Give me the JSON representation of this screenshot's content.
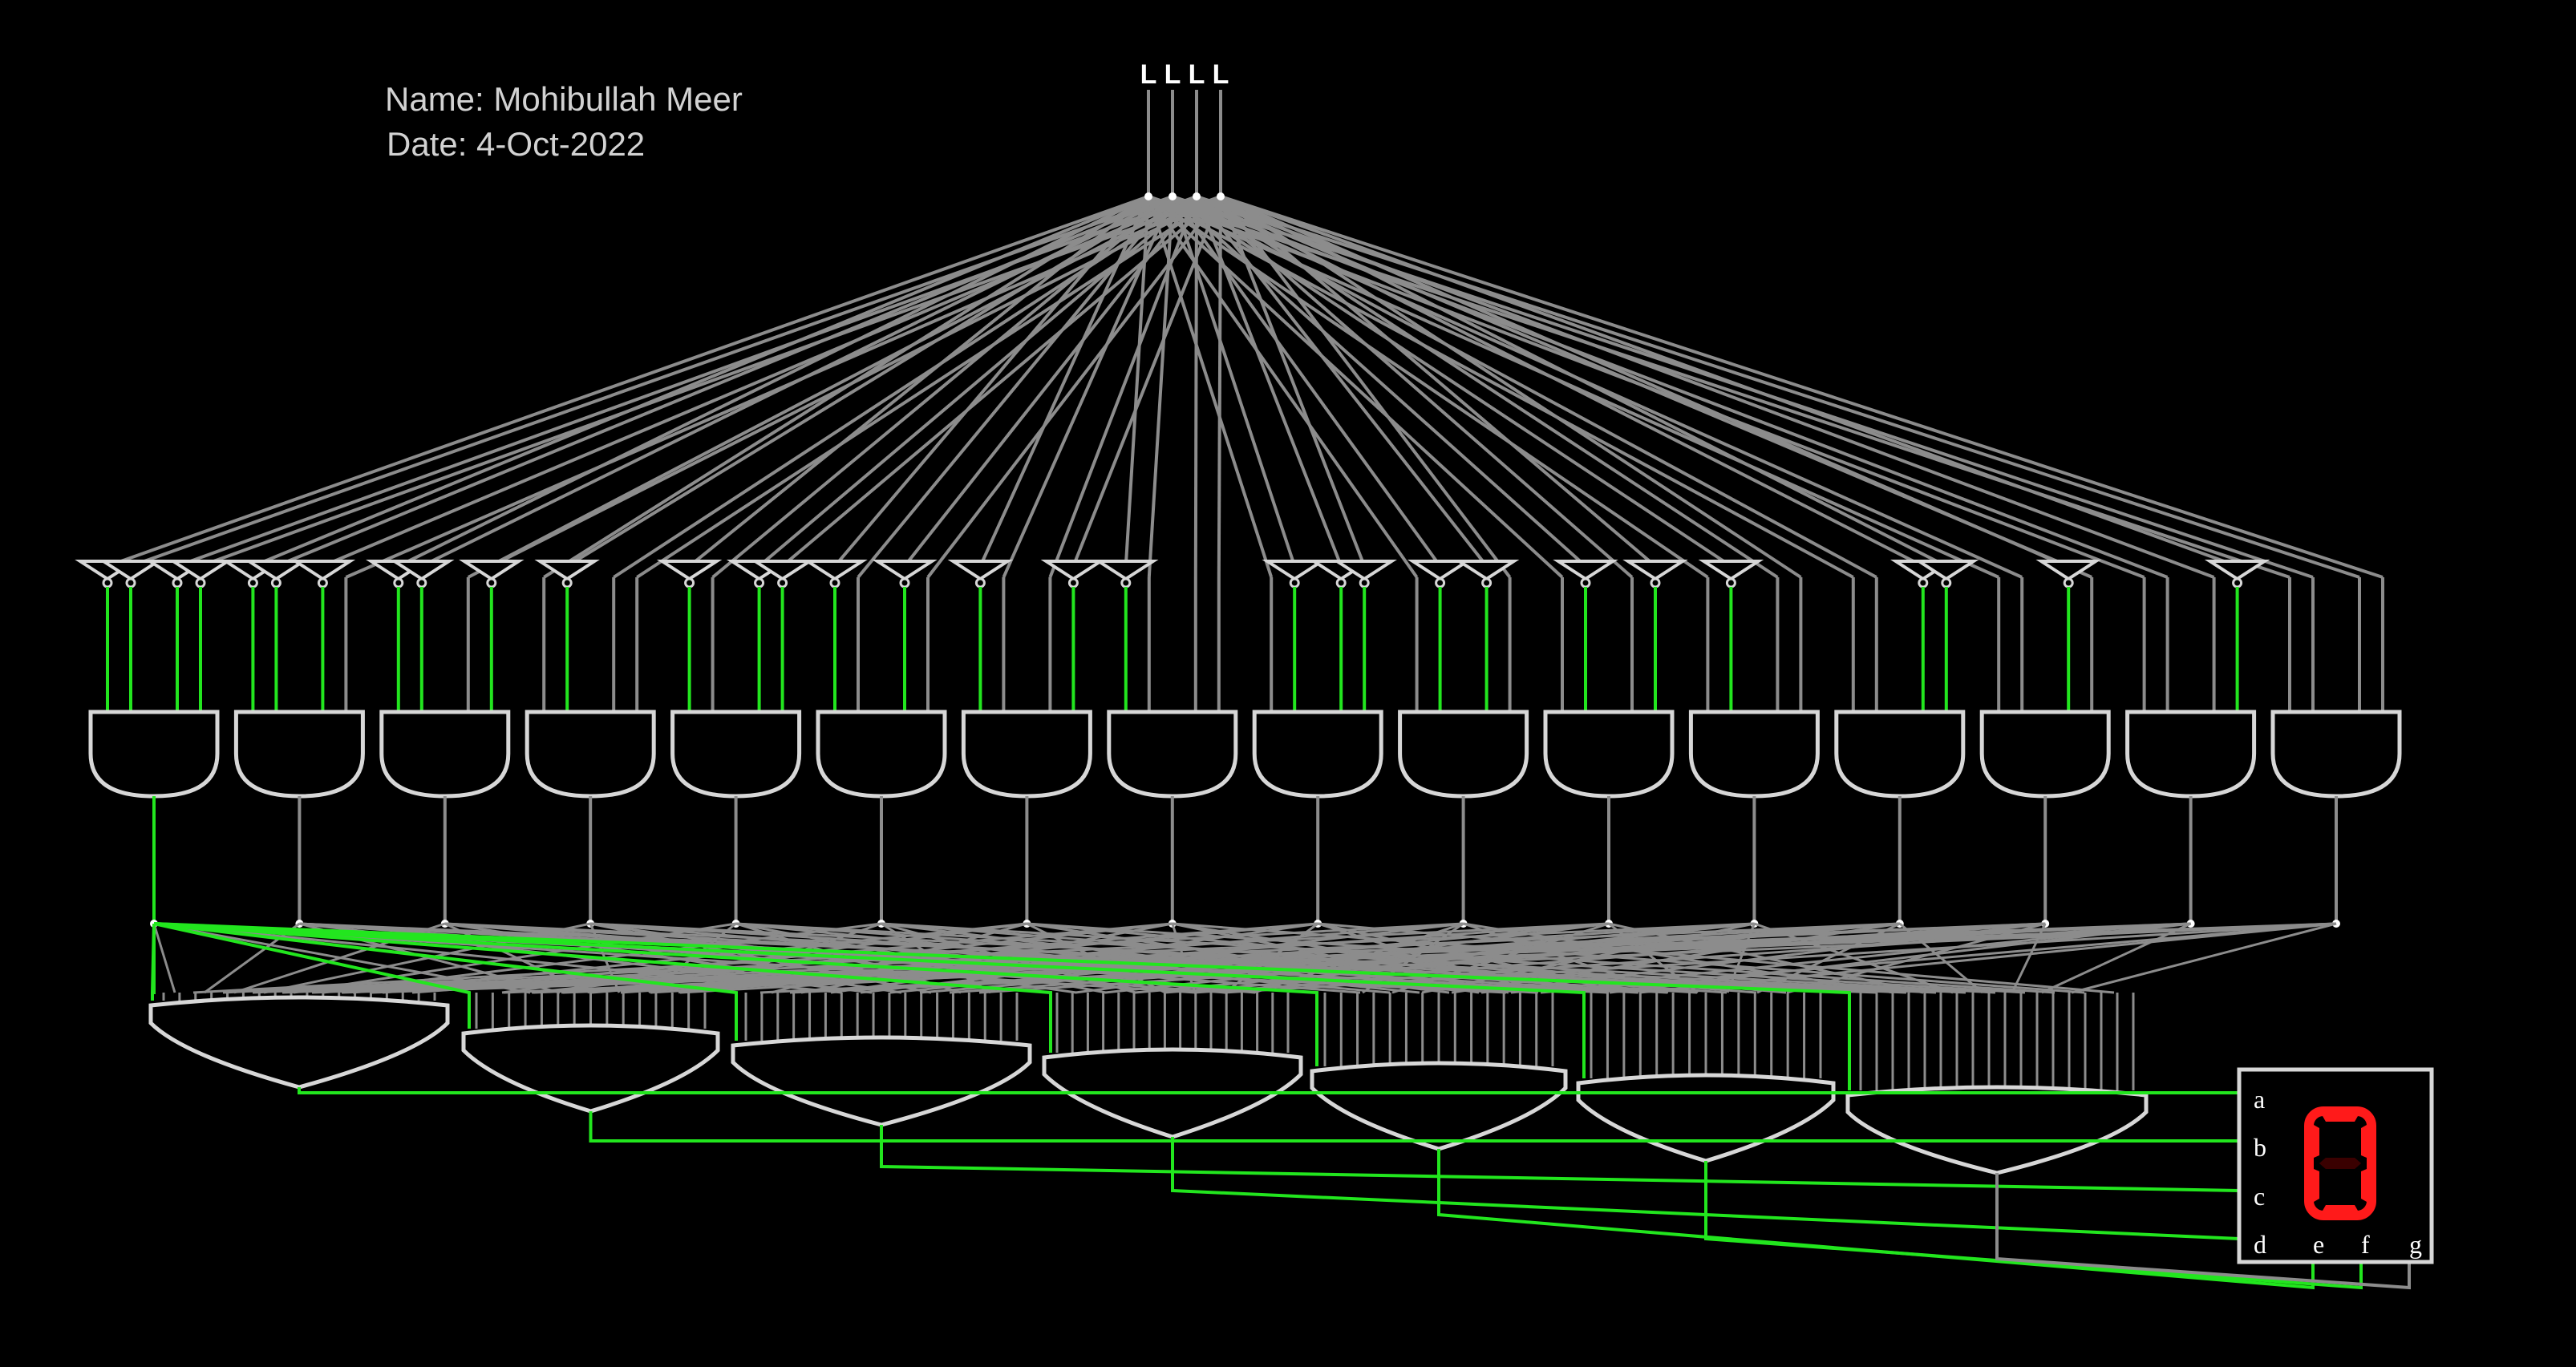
{
  "author": {
    "name_line": "Name: Mohibullah Meer",
    "date_line": "Date: 4-Oct-2022"
  },
  "inputs": {
    "labels": [
      "L",
      "L",
      "L",
      "L"
    ]
  },
  "display": {
    "segment_labels": [
      "a",
      "b",
      "c",
      "d",
      "e",
      "f",
      "g"
    ],
    "shown_digit": "0"
  },
  "colors": {
    "background": "#000000",
    "wire_off": "#8c8c8c",
    "wire_on": "#22e61e",
    "gate_stroke": "#d7d7d7",
    "segment_on": "#ff1a1a",
    "segment_off": "#3a0000",
    "text": "#ffffff"
  },
  "and_gates": {
    "count": 16,
    "active_index": 0
  },
  "or_gates": {
    "count": 7,
    "all_active": true
  }
}
